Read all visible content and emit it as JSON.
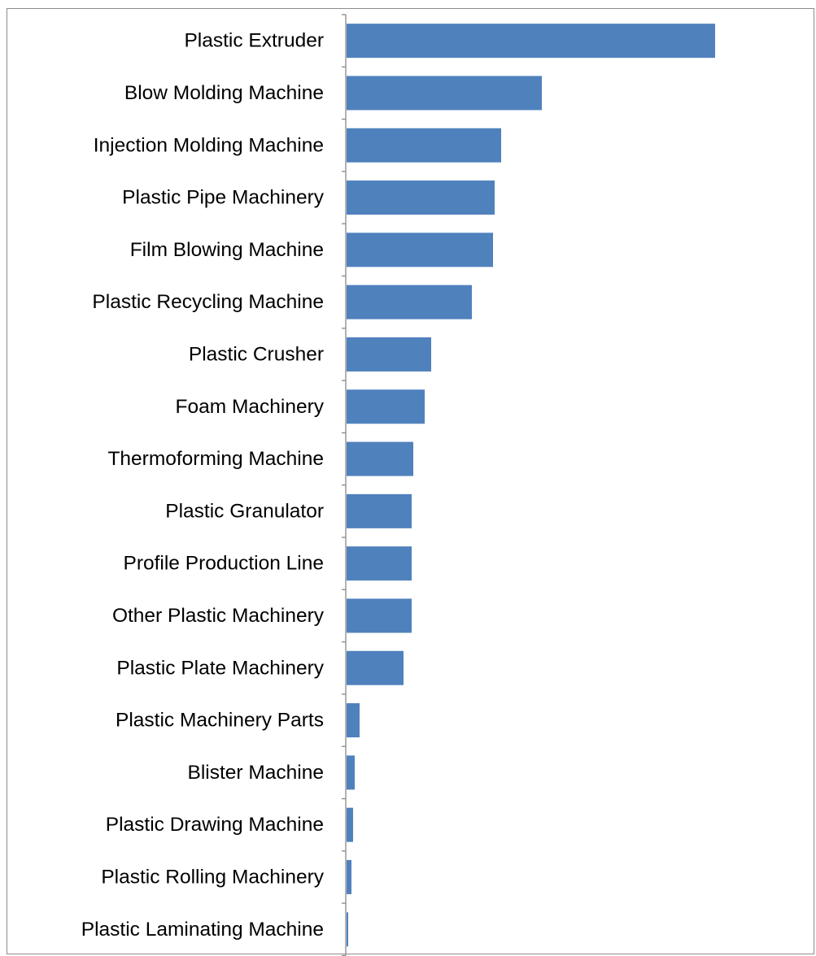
{
  "chart_data": {
    "type": "bar",
    "orientation": "horizontal",
    "categories": [
      "Plastic Extruder",
      "Blow Molding Machine",
      "Injection Molding Machine",
      "Plastic Pipe Machinery",
      "Film Blowing Machine",
      "Plastic Recycling Machine",
      "Plastic Crusher",
      "Foam Machinery",
      "Thermoforming Machine",
      "Plastic Granulator",
      "Profile Production Line",
      "Other Plastic Machinery",
      "Plastic Plate Machinery",
      "Plastic Machinery Parts",
      "Blister Machine",
      "Plastic Drawing Machine",
      "Plastic Rolling Machinery",
      "Plastic Laminating Machine"
    ],
    "values": [
      453,
      240,
      190,
      182,
      180,
      154,
      104,
      96,
      82,
      80,
      80,
      80,
      70,
      16,
      10,
      8,
      6,
      2
    ],
    "title": "",
    "xlabel": "",
    "ylabel": "",
    "xlim": [
      0,
      566
    ],
    "grid": false,
    "legend": "none",
    "bar_color": "#4f81bd",
    "axis_color": "#888888"
  }
}
